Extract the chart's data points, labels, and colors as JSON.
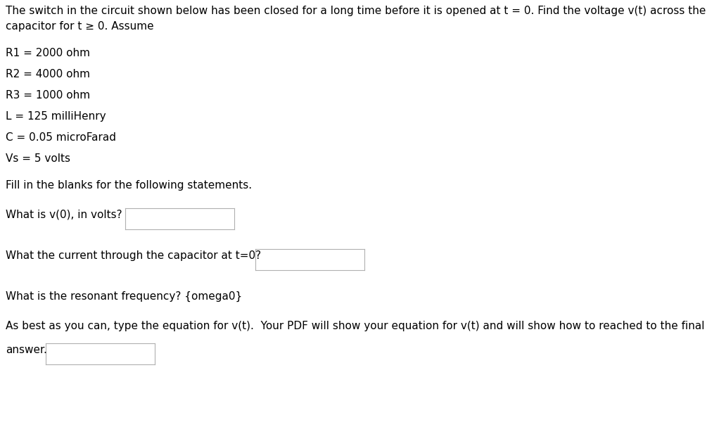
{
  "background_color": "#ffffff",
  "title_line1": "The switch in the circuit shown below has been closed for a long time before it is opened at t = 0. Find the voltage v(t) across the",
  "title_line2": "capacitor for t ≥ 0. Assume",
  "params": [
    "R1 = 2000 ohm",
    "R2 = 4000 ohm",
    "R3 = 1000 ohm",
    "L = 125 milliHenry",
    "C = 0.05 microFarad",
    "Vs = 5 volts"
  ],
  "fill_in_label": "Fill in the blanks for the following statements.",
  "q1_label": "What is v(0), in volts?",
  "q2_label": "What the current through the capacitor at t=0?",
  "q3_label": "What is the resonant frequency? {omega0}",
  "q4_line1": "As best as you can, type the equation for v(t).  Your PDF will show your equation for v(t) and will show how to reached to the final",
  "q4_line2": "answer.",
  "text_color": "#000000",
  "font_size": 11.0,
  "box_color": "#ffffff",
  "box_edge_color": "#b0b0b0",
  "fig_width": 10.32,
  "fig_height": 6.07,
  "dpi": 100
}
